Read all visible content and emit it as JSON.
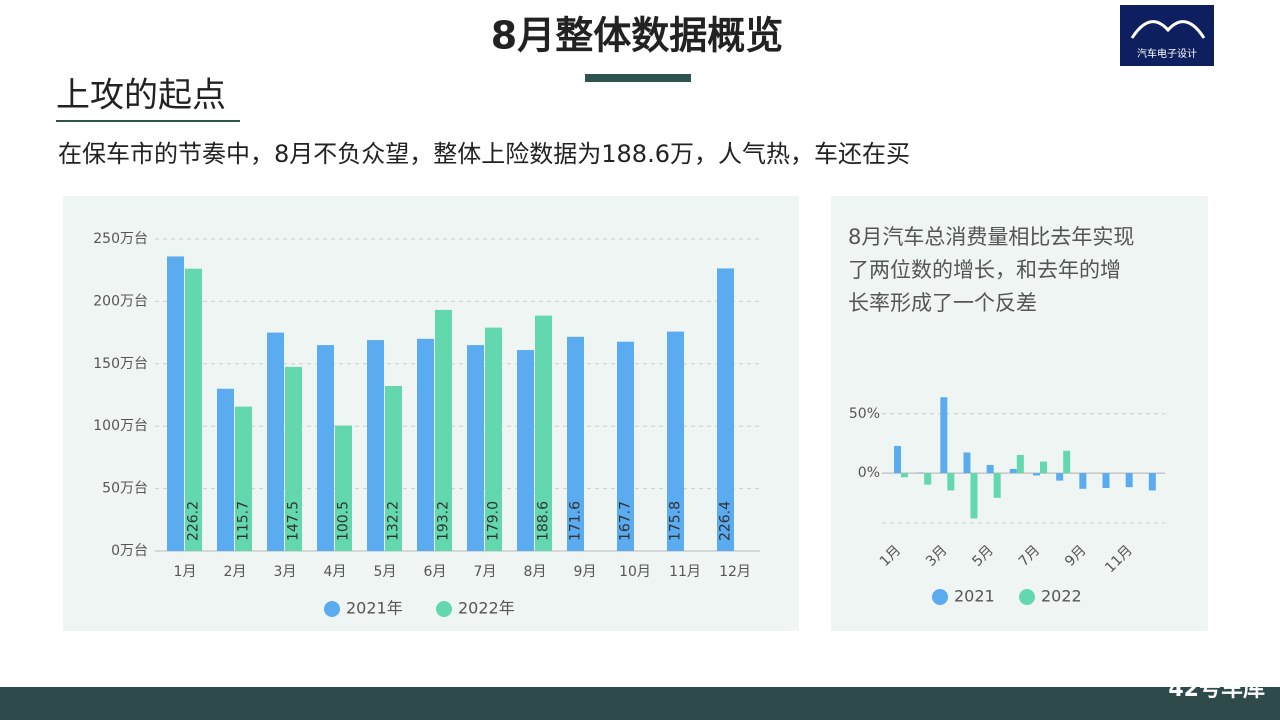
{
  "header": {
    "title": "8月整体数据概览",
    "logo_text": "汽车电子设计",
    "subtitle": "上攻的起点",
    "intro": "在保车市的节奏中，8月不负众望，整体上险数据为188.6万，人气热，车还在买",
    "footer_brand": "42号车库"
  },
  "chart_data": [
    {
      "type": "bar",
      "categories": [
        "1月",
        "2月",
        "3月",
        "4月",
        "5月",
        "6月",
        "7月",
        "8月",
        "9月",
        "10月",
        "11月",
        "12月"
      ],
      "series": [
        {
          "name": "2021年",
          "color": "#5aabf0",
          "values": [
            236,
            130,
            175,
            165,
            169,
            170,
            165,
            161,
            171.6,
            167.7,
            175.8,
            226.4
          ],
          "value_labels": [
            null,
            null,
            null,
            null,
            null,
            null,
            null,
            null,
            "171.6",
            "167.7",
            "175.8",
            "226.4"
          ]
        },
        {
          "name": "2022年",
          "color": "#63d8ae",
          "values": [
            226.2,
            115.7,
            147.5,
            100.5,
            132.2,
            193.2,
            179.0,
            188.6,
            null,
            null,
            null,
            null
          ],
          "value_labels": [
            "226.2",
            "115.7",
            "147.5",
            "100.5",
            "132.2",
            "193.2",
            "179.0",
            "188.6",
            null,
            null,
            null,
            null
          ]
        }
      ],
      "ylim": [
        0,
        250
      ],
      "yticks": [
        {
          "value": 0,
          "label": "0万台"
        },
        {
          "value": 50,
          "label": "50万台"
        },
        {
          "value": 100,
          "label": "100万台"
        },
        {
          "value": 150,
          "label": "150万台"
        },
        {
          "value": 200,
          "label": "200万台"
        },
        {
          "value": 250,
          "label": "250万台"
        }
      ],
      "grid": true,
      "legend": "bottom"
    },
    {
      "type": "bar",
      "annotation": [
        "8月汽车总消费量相比去年实现",
        "了两位数的增长，和去年的增",
        "长率形成了一个反差"
      ],
      "categories": [
        "1月",
        null,
        "3月",
        null,
        "5月",
        null,
        "7月",
        null,
        "9月",
        null,
        "11月",
        null
      ],
      "series": [
        {
          "name": "2021",
          "color": "#5aabf0",
          "values": [
            22.9,
            0.5,
            63.9,
            17.4,
            6.9,
            3.5,
            -2,
            -6.3,
            -13.2,
            -12.5,
            -11.8,
            -14.6
          ]
        },
        {
          "name": "2022",
          "color": "#63d8ae",
          "values": [
            -3.5,
            -9.7,
            -14.6,
            -38.2,
            -20.8,
            15.3,
            9.7,
            18.8,
            null,
            null,
            null,
            null
          ]
        }
      ],
      "ylim": [
        -42,
        70
      ],
      "yticks": [
        {
          "value": 0,
          "label": "0%"
        },
        {
          "value": 50,
          "label": "50%"
        }
      ],
      "grid": true,
      "legend": "bottom"
    }
  ]
}
